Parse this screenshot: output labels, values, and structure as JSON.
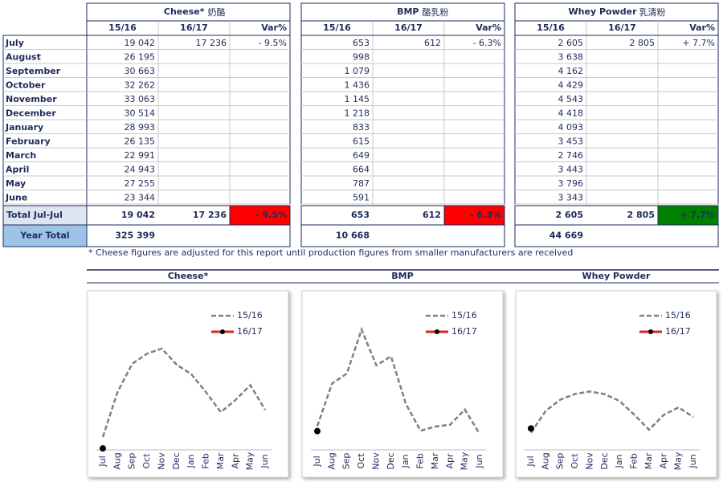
{
  "table": {
    "groups": [
      {
        "title": "Cheese*",
        "subtitle": "奶酪"
      },
      {
        "title": "BMP",
        "subtitle": "酪乳粉"
      },
      {
        "title": "Whey Powder",
        "subtitle": "乳清粉"
      }
    ],
    "columns": [
      "15/16",
      "16/17",
      "Var%"
    ],
    "rows": [
      {
        "month": "July",
        "cells": [
          [
            "19 042",
            "17 236",
            "- 9.5%"
          ],
          [
            "653",
            "612",
            "- 6.3%"
          ],
          [
            "2 605",
            "2 805",
            "+ 7.7%"
          ]
        ]
      },
      {
        "month": "August",
        "cells": [
          [
            "26 195"
          ],
          [
            "998"
          ],
          [
            "3 638"
          ]
        ]
      },
      {
        "month": "September",
        "cells": [
          [
            "30 663"
          ],
          [
            "1 079"
          ],
          [
            "4 162"
          ]
        ]
      },
      {
        "month": "October",
        "cells": [
          [
            "32 262"
          ],
          [
            "1 436"
          ],
          [
            "4 429"
          ]
        ]
      },
      {
        "month": "November",
        "cells": [
          [
            "33 063"
          ],
          [
            "1 145"
          ],
          [
            "4 543"
          ]
        ]
      },
      {
        "month": "December",
        "cells": [
          [
            "30 514"
          ],
          [
            "1 218"
          ],
          [
            "4 418"
          ]
        ]
      },
      {
        "month": "January",
        "cells": [
          [
            "28 993"
          ],
          [
            "833"
          ],
          [
            "4 093"
          ]
        ]
      },
      {
        "month": "February",
        "cells": [
          [
            "26 135"
          ],
          [
            "615"
          ],
          [
            "3 453"
          ]
        ]
      },
      {
        "month": "March",
        "cells": [
          [
            "22 991"
          ],
          [
            "649"
          ],
          [
            "2 746"
          ]
        ]
      },
      {
        "month": "April",
        "cells": [
          [
            "24 943"
          ],
          [
            "664"
          ],
          [
            "3 443"
          ]
        ]
      },
      {
        "month": "May",
        "cells": [
          [
            "27 255"
          ],
          [
            "787"
          ],
          [
            "3 796"
          ]
        ]
      },
      {
        "month": "June",
        "cells": [
          [
            "23 344"
          ],
          [
            "591"
          ],
          [
            "3 343"
          ]
        ]
      }
    ],
    "total": {
      "label": "Total Jul-Jul",
      "cells": [
        [
          "19 042",
          "17 236",
          "- 9.5%"
        ],
        [
          "653",
          "612",
          "- 6.3%"
        ],
        [
          "2 605",
          "2 805",
          "+ 7.7%"
        ]
      ],
      "var_colors": [
        "#ff0000",
        "#ff0000",
        "#008000"
      ]
    },
    "year_total": {
      "label": "Year Total",
      "cells": [
        "325 399",
        "10 668",
        "44 669"
      ]
    },
    "footnote": "* Cheese figures are adjusted for this report until production figures from smaller manufacturers are received"
  },
  "chart_data": [
    {
      "type": "line",
      "title": "Cheese*",
      "categories": [
        "Jul",
        "Aug",
        "Sep",
        "Oct",
        "Nov",
        "Dec",
        "Jan",
        "Feb",
        "Mar",
        "Apr",
        "May",
        "Jun"
      ],
      "ylim": [
        17000,
        39300
      ],
      "series": [
        {
          "name": "15/16",
          "color": "#808080",
          "values": [
            19042,
            26195,
            30663,
            32262,
            33063,
            30514,
            28993,
            26135,
            22991,
            24943,
            27255,
            23344
          ]
        },
        {
          "name": "16/17",
          "color": "#d9261c",
          "values": [
            17236,
            null,
            null,
            null,
            null,
            null,
            null,
            null,
            null,
            null,
            null,
            null
          ]
        }
      ]
    },
    {
      "type": "line",
      "title": "BMP",
      "categories": [
        "Jul",
        "Aug",
        "Sep",
        "Oct",
        "Nov",
        "Dec",
        "Jan",
        "Feb",
        "Mar",
        "Apr",
        "May",
        "Jun"
      ],
      "ylim": [
        460,
        1600
      ],
      "series": [
        {
          "name": "15/16",
          "color": "#808080",
          "values": [
            653,
            998,
            1079,
            1436,
            1145,
            1218,
            833,
            615,
            649,
            664,
            787,
            591
          ]
        },
        {
          "name": "16/17",
          "color": "#d9261c",
          "values": [
            612,
            null,
            null,
            null,
            null,
            null,
            null,
            null,
            null,
            null,
            null,
            null
          ]
        }
      ]
    },
    {
      "type": "line",
      "title": "Whey Powder",
      "categories": [
        "Jul",
        "Aug",
        "Sep",
        "Oct",
        "Nov",
        "Dec",
        "Jan",
        "Feb",
        "Mar",
        "Apr",
        "May",
        "Jun"
      ],
      "ylim": [
        1800,
        8400
      ],
      "series": [
        {
          "name": "15/16",
          "color": "#808080",
          "values": [
            2605,
            3638,
            4162,
            4429,
            4543,
            4418,
            4093,
            3453,
            2746,
            3443,
            3796,
            3343
          ]
        },
        {
          "name": "16/17",
          "color": "#d9261c",
          "values": [
            2805,
            null,
            null,
            null,
            null,
            null,
            null,
            null,
            null,
            null,
            null,
            null
          ]
        }
      ]
    }
  ]
}
